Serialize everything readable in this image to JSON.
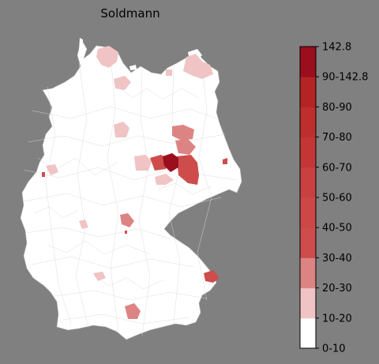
{
  "title": "Soldmann",
  "colorbar": {
    "ticks": [
      "0-10",
      "10-20",
      "20-30",
      "30-40",
      "40-50",
      "50-60",
      "60-70",
      "70-80",
      "80-90",
      "90-142.8",
      "142.8"
    ],
    "bins": [
      {
        "label": "0-10",
        "color": "#ffffff"
      },
      {
        "label": "10-20",
        "color": "#f0c4c4"
      },
      {
        "label": "20-30",
        "color": "#dc8484"
      },
      {
        "label": "30-40",
        "color": "#cf4c4c"
      },
      {
        "label": "40-50",
        "color": "#cd4747"
      },
      {
        "label": "50-60",
        "color": "#c94040"
      },
      {
        "label": "60-70",
        "color": "#c43636"
      },
      {
        "label": "70-80",
        "color": "#bf2e2e"
      },
      {
        "label": "80-90",
        "color": "#b52424"
      },
      {
        "label": "90-142.8",
        "color": "#9b0e1e"
      }
    ]
  },
  "colors": {
    "background": "#808080",
    "land": "#ffffff",
    "border": "#cfcfcf"
  }
}
